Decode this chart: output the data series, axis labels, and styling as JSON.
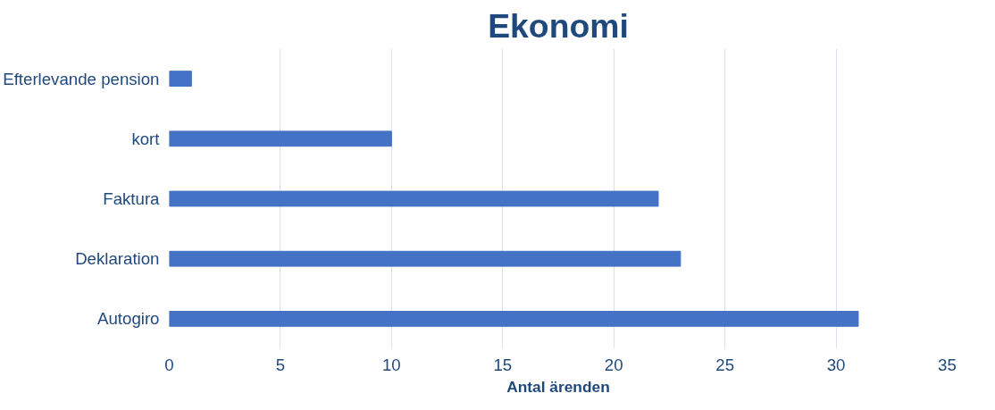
{
  "chart_data": {
    "type": "bar",
    "orientation": "horizontal",
    "title": "Ekonomi",
    "xlabel": "Antal ärenden",
    "categories": [
      "Efterlevande pension",
      "kort",
      "Faktura",
      "Deklaration",
      "Autogiro"
    ],
    "values": [
      1,
      10,
      22,
      23,
      31
    ],
    "color": "#4472c4",
    "xlim": [
      0,
      35
    ],
    "xticks": [
      0,
      5,
      10,
      15,
      20,
      25,
      30,
      35
    ],
    "grid": "x"
  }
}
